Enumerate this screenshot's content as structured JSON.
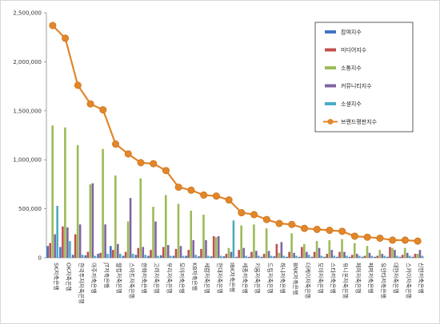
{
  "chart_data": {
    "type": "bar",
    "title": "",
    "xlabel": "",
    "ylabel": "",
    "ylim": [
      0,
      2500000
    ],
    "yticks": [
      "0",
      "500,000",
      "1,000,000",
      "1,500,000",
      "2,000,000",
      "2,500,000"
    ],
    "grid": false,
    "legend_position": "top-right",
    "categories": [
      "SK저축은행",
      "OK저축은행",
      "한국투자저축은행",
      "아주저축은행",
      "JT저축은행",
      "웰컴저축은행",
      "스마트저축은행",
      "한화저축은행",
      "고려저축은행",
      "우리저축은행",
      "모아저축은행",
      "KB저축은행",
      "세람저축은행",
      "현대저축은행",
      "IBK저축은행",
      "세종저축은행",
      "키움저축은행",
      "드림저축은행",
      "하나저축은행",
      "BNK저축은행",
      "더케이저축은행",
      "모아저축은행",
      "스타저축은행",
      "유니온저축은행",
      "페퍼저축은행",
      "페퍼저축은행",
      "유안타저축은행",
      "대한저축은행",
      "스카이저축은행",
      "신한저축은행"
    ],
    "series": [
      {
        "name": "참여지수",
        "color": "#4472c4",
        "kind": "bar",
        "values": [
          120000,
          110000,
          30000,
          25000,
          40000,
          120000,
          20000,
          30000,
          20000,
          25000,
          20000,
          20000,
          15000,
          15000,
          15000,
          10000,
          10000,
          10000,
          15000,
          10000,
          10000,
          10000,
          10000,
          10000,
          10000,
          10000,
          10000,
          10000,
          10000,
          10000
        ]
      },
      {
        "name": "미디어지수",
        "color": "#c0504d",
        "kind": "bar",
        "values": [
          150000,
          320000,
          240000,
          60000,
          50000,
          80000,
          60000,
          100000,
          80000,
          110000,
          90000,
          80000,
          90000,
          220000,
          40000,
          80000,
          60000,
          40000,
          140000,
          60000,
          110000,
          60000,
          40000,
          60000,
          30000,
          20000,
          20000,
          110000,
          30000,
          40000
        ]
      },
      {
        "name": "소통지수",
        "color": "#9bbb59",
        "kind": "bar",
        "values": [
          1350000,
          1330000,
          1150000,
          750000,
          1110000,
          840000,
          370000,
          810000,
          520000,
          640000,
          550000,
          480000,
          440000,
          210000,
          100000,
          330000,
          340000,
          300000,
          50000,
          250000,
          140000,
          170000,
          180000,
          190000,
          150000,
          120000,
          80000,
          100000,
          100000,
          40000
        ]
      },
      {
        "name": "커뮤니티지수",
        "color": "#8064a2",
        "kind": "bar",
        "values": [
          240000,
          310000,
          340000,
          760000,
          340000,
          140000,
          610000,
          110000,
          370000,
          130000,
          120000,
          180000,
          180000,
          220000,
          60000,
          100000,
          70000,
          70000,
          160000,
          50000,
          60000,
          100000,
          80000,
          60000,
          40000,
          50000,
          40000,
          80000,
          50000,
          80000
        ]
      },
      {
        "name": "소셜지수",
        "color": "#4bacc6",
        "kind": "bar",
        "values": [
          530000,
          170000,
          30000,
          20000,
          40000,
          40000,
          40000,
          30000,
          20000,
          20000,
          20000,
          30000,
          20000,
          20000,
          380000,
          20000,
          20000,
          20000,
          20000,
          20000,
          30000,
          20000,
          20000,
          20000,
          20000,
          20000,
          20000,
          20000,
          20000,
          20000
        ]
      },
      {
        "name": "브랜드평판지수",
        "color": "#e2862a",
        "kind": "line",
        "values": [
          2370000,
          2240000,
          1760000,
          1570000,
          1510000,
          1160000,
          1060000,
          970000,
          960000,
          890000,
          720000,
          690000,
          640000,
          630000,
          590000,
          460000,
          440000,
          390000,
          350000,
          340000,
          300000,
          290000,
          280000,
          270000,
          220000,
          210000,
          200000,
          180000,
          180000,
          170000
        ]
      }
    ]
  }
}
